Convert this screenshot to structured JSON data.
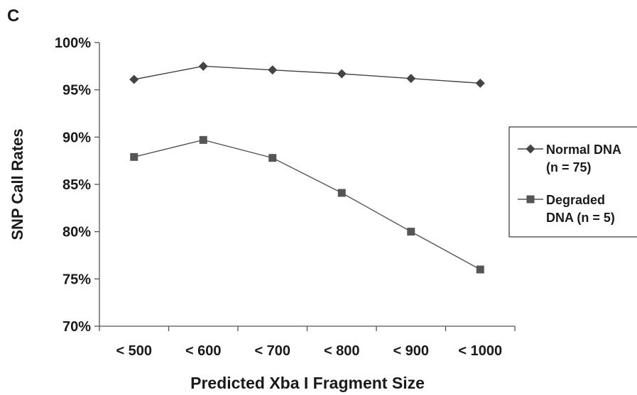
{
  "panel_label": "C",
  "chart_data": {
    "type": "line",
    "title": "",
    "xlabel": "Predicted Xba I Fragment Size",
    "ylabel": "SNP Call Rates",
    "categories": [
      "< 500",
      "< 600",
      "< 700",
      "< 800",
      "< 900",
      "< 1000"
    ],
    "ylim": [
      70,
      100
    ],
    "yticks": [
      "70%",
      "75%",
      "80%",
      "85%",
      "90%",
      "95%",
      "100%"
    ],
    "grid": false,
    "legend_position": "right",
    "series": [
      {
        "name": "Normal DNA (n = 75)",
        "legend_lines": [
          "Normal DNA",
          "(n = 75)"
        ],
        "marker": "diamond",
        "color": "#444444",
        "values": [
          96.1,
          97.5,
          97.1,
          96.7,
          96.2,
          95.7
        ]
      },
      {
        "name": "Degraded DNA (n = 5)",
        "legend_lines": [
          "Degraded",
          "DNA (n = 5)"
        ],
        "marker": "square",
        "color": "#555555",
        "values": [
          87.9,
          89.7,
          87.8,
          84.1,
          80.0,
          76.0
        ]
      }
    ]
  }
}
